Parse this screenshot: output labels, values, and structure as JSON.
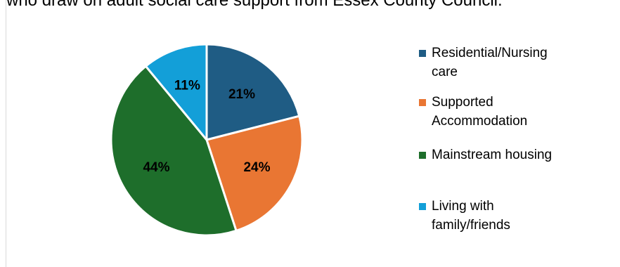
{
  "chart_data": {
    "type": "pie",
    "title": "who draw on adult social care support from Essex County Council.",
    "slices": [
      {
        "label": "Residential/Nursing care",
        "value": 21,
        "display": "21%",
        "color": "#1f5c84"
      },
      {
        "label": "Supported Accommodation",
        "value": 24,
        "display": "24%",
        "color": "#e97633"
      },
      {
        "label": "Mainstream housing",
        "value": 44,
        "display": "44%",
        "color": "#1e6e2b"
      },
      {
        "label": "Living with family/friends",
        "value": 11,
        "display": "11%",
        "color": "#139fd8"
      }
    ],
    "legend_position": "right",
    "data_label_color": "#000000",
    "slice_border_color": "#ffffff"
  }
}
